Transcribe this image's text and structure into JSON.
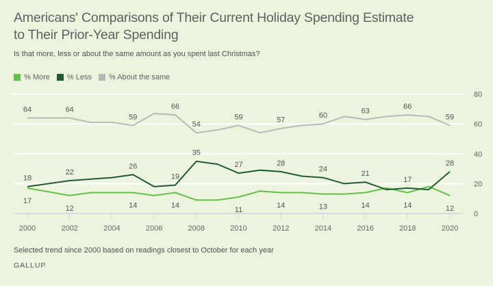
{
  "header": {
    "title": "Americans' Comparisons of Their Current Holiday Spending Estimate to Their Prior-Year Spending",
    "subtitle": "Is that more, less or about the same amount as you spent last Christmas?"
  },
  "legend": [
    {
      "label": "% More",
      "color": "#62bf4b"
    },
    {
      "label": "% Less",
      "color": "#215a32"
    },
    {
      "label": "% About the same",
      "color": "#b9b9b9"
    }
  ],
  "footer": {
    "note": "Selected trend since 2000 based on readings closest to October for each year",
    "brand": "GALLUP"
  },
  "chart_data": {
    "type": "line",
    "title": "Americans' Comparisons of Their Current Holiday Spending Estimate to Their Prior-Year Spending",
    "subtitle": "Is that more, less or about the same amount as you spent last Christmas?",
    "xlabel": "",
    "ylabel": "",
    "x": [
      2000,
      2002,
      2003,
      2004,
      2005,
      2006,
      2007,
      2008,
      2009,
      2010,
      2011,
      2012,
      2013,
      2014,
      2015,
      2016,
      2017,
      2018,
      2019,
      2020
    ],
    "xlim": [
      2000,
      2020
    ],
    "x_ticks": [
      2000,
      2002,
      2004,
      2006,
      2008,
      2010,
      2012,
      2014,
      2016,
      2018,
      2020
    ],
    "ylim": [
      0,
      80
    ],
    "y_ticks": [
      0,
      20,
      40,
      60,
      80
    ],
    "y_axis_side": "right",
    "grid": true,
    "legend_position": "top-left",
    "series": [
      {
        "name": "% More",
        "color": "#62bf4b",
        "values": [
          17,
          12,
          14,
          14,
          14,
          12,
          14,
          9,
          9,
          11,
          15,
          14,
          14,
          13,
          13,
          14,
          17,
          14,
          18,
          12
        ],
        "labeled_years": [
          2000,
          2002,
          2005,
          2007,
          2010,
          2012,
          2014,
          2016,
          2018,
          2020
        ],
        "label_side": "below"
      },
      {
        "name": "% Less",
        "color": "#215a32",
        "values": [
          18,
          22,
          23,
          24,
          26,
          18,
          19,
          35,
          33,
          27,
          29,
          28,
          25,
          24,
          20,
          21,
          16,
          17,
          16,
          28
        ],
        "labeled_years": [
          2000,
          2002,
          2005,
          2007,
          2008,
          2010,
          2012,
          2014,
          2016,
          2018,
          2020
        ],
        "label_side": "above"
      },
      {
        "name": "% About the same",
        "color": "#b9b9b9",
        "values": [
          64,
          64,
          61,
          61,
          59,
          67,
          66,
          54,
          56,
          59,
          54,
          57,
          59,
          60,
          65,
          63,
          65,
          66,
          65,
          59
        ],
        "labeled_years": [
          2000,
          2002,
          2005,
          2007,
          2008,
          2010,
          2012,
          2014,
          2016,
          2018,
          2020
        ],
        "label_side": "above"
      }
    ]
  }
}
